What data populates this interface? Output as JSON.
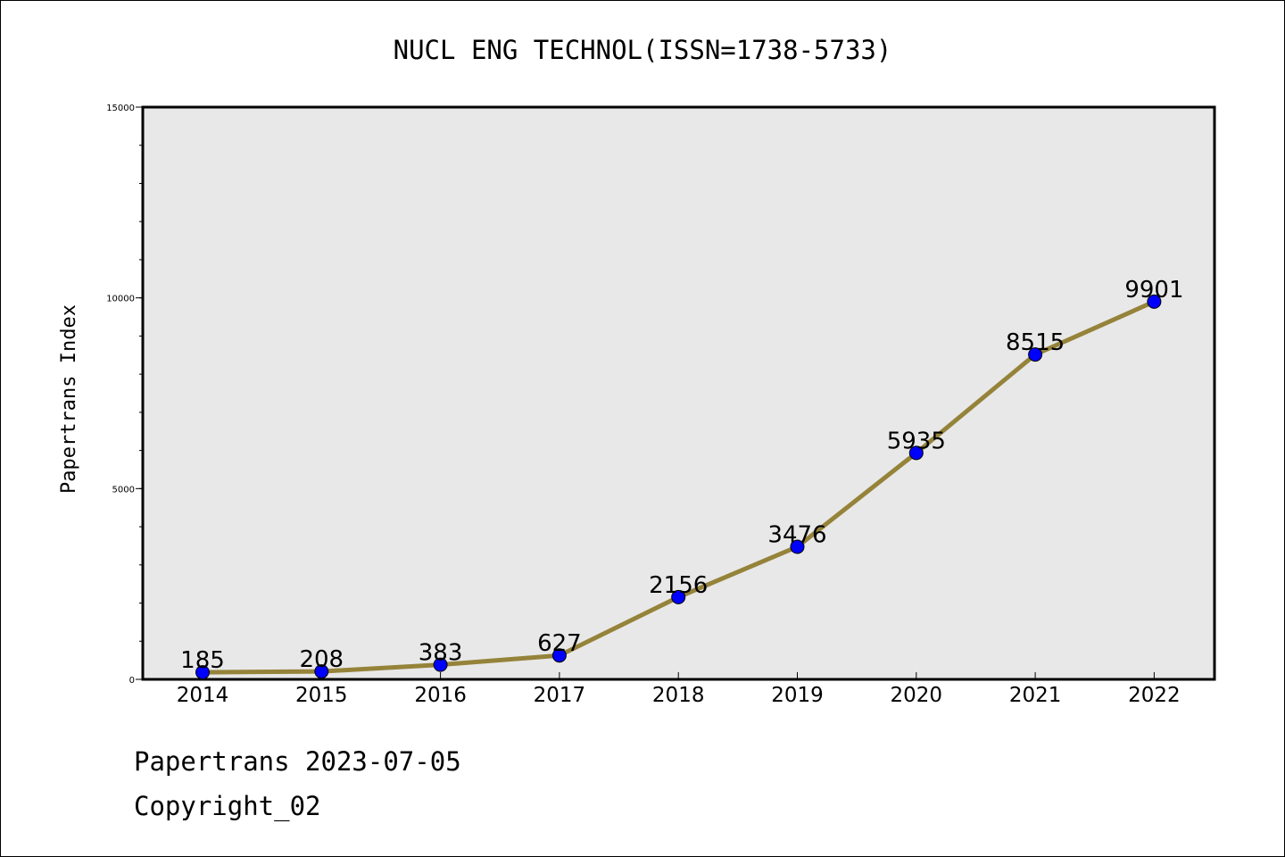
{
  "chart_data": {
    "type": "line",
    "title": "NUCL ENG TECHNOL(ISSN=1738-5733)",
    "xlabel": "",
    "ylabel": "Papertrans Index",
    "categories": [
      "2014",
      "2015",
      "2016",
      "2017",
      "2018",
      "2019",
      "2020",
      "2021",
      "2022"
    ],
    "series": [
      {
        "values": [
          185,
          208,
          383,
          627,
          2156,
          3476,
          5935,
          8515,
          9901
        ],
        "data_labels": [
          "185",
          "208",
          "383",
          "627",
          "2156",
          "3476",
          "5935",
          "8515",
          "9901"
        ]
      }
    ],
    "ylim": [
      0,
      15000
    ],
    "y_ticks": [
      0,
      5000,
      10000,
      15000
    ],
    "y_tick_labels": [
      "0",
      "5000",
      "10000",
      "15000"
    ],
    "y_minor_step": 1000,
    "grid": false,
    "legend": "none",
    "colors": {
      "line": "#95833a",
      "marker": "#0000ff",
      "plot_background": "#e8e8e8"
    }
  },
  "footer": {
    "date_text": "Papertrans 2023-07-05",
    "copyright_text": "Copyright_02"
  }
}
